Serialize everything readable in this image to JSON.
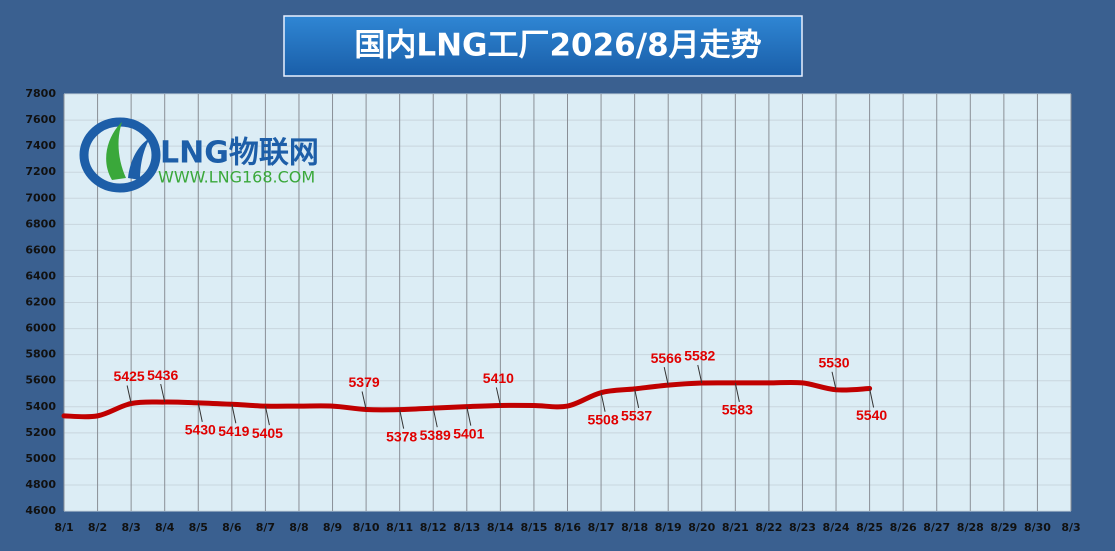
{
  "chart_data": {
    "type": "line",
    "title": "国内LNG工厂2026/8月走势",
    "categories": [
      "8/1",
      "8/2",
      "8/3",
      "8/4",
      "8/5",
      "8/6",
      "8/7",
      "8/8",
      "8/9",
      "8/10",
      "8/11",
      "8/12",
      "8/13",
      "8/14",
      "8/15",
      "8/16",
      "8/17",
      "8/18",
      "8/19",
      "8/20",
      "8/21",
      "8/22",
      "8/23",
      "8/24",
      "8/25",
      "8/26",
      "8/27",
      "8/28",
      "8/29",
      "8/30",
      "8/3"
    ],
    "values": [
      5330,
      5330,
      5425,
      5436,
      5430,
      5419,
      5405,
      5405,
      5405,
      5379,
      5378,
      5389,
      5401,
      5410,
      5410,
      5405,
      5508,
      5537,
      5566,
      5582,
      5583,
      5583,
      5583,
      5530,
      5540,
      null,
      null,
      null,
      null,
      null,
      null
    ],
    "value_labels": [
      null,
      null,
      "5425",
      "5436",
      "5430",
      "5419",
      "5405",
      null,
      null,
      "5379",
      "5378",
      "5389",
      "5401",
      "5410",
      null,
      null,
      "5508",
      "5537",
      "5566",
      "5582",
      "5583",
      null,
      null,
      "5530",
      "5540",
      null,
      null,
      null,
      null,
      null,
      null
    ],
    "color": "#c00000",
    "ylim": [
      4600,
      7800
    ],
    "yticks": [
      4600,
      4800,
      5000,
      5200,
      5400,
      5600,
      5800,
      6000,
      6200,
      6400,
      6600,
      6800,
      7000,
      7200,
      7400,
      7600,
      7800
    ],
    "grid": true
  },
  "logo": {
    "name": "LNG物联网",
    "url": "WWW.LNG168.COM"
  }
}
